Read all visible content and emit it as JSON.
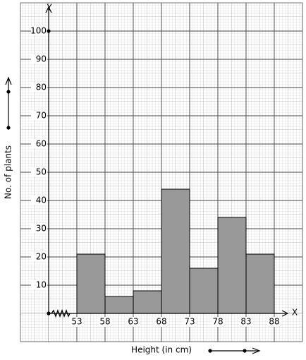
{
  "chart_data": {
    "type": "histogram",
    "x_label": "Height (in cm)",
    "y_label": "No. of plants",
    "x_axis_symbol": "X",
    "y_axis_symbol": "Y",
    "bins": [
      53,
      58,
      63,
      68,
      73,
      78,
      83,
      88
    ],
    "values": [
      21,
      6,
      8,
      44,
      16,
      34,
      21
    ],
    "color": "#999999",
    "xlim": [
      48,
      93
    ],
    "xticks": [
      53,
      58,
      63,
      68,
      73,
      78,
      83,
      88
    ],
    "ylim": [
      0,
      110
    ],
    "yticks": [
      10,
      20,
      30,
      40,
      50,
      60,
      70,
      80,
      90,
      100
    ],
    "grid": true
  }
}
